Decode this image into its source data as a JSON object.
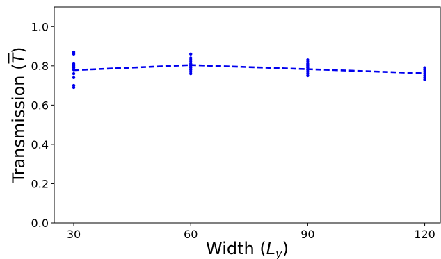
{
  "chart_data": {
    "type": "scatter",
    "title": "",
    "xlabel": {
      "text": "Width (",
      "var": "L",
      "sub": "y",
      "close": ")"
    },
    "ylabel": {
      "text": "Transmission (",
      "var": "T",
      "close": ")"
    },
    "xlim": [
      25,
      124
    ],
    "ylim": [
      0.0,
      1.1
    ],
    "xticks": [
      30,
      60,
      90,
      120
    ],
    "yticks": [
      0.0,
      0.2,
      0.4,
      0.6,
      0.8,
      1.0
    ],
    "ytick_labels": [
      "0.0",
      "0.2",
      "0.4",
      "0.6",
      "0.8",
      "1.0"
    ],
    "grid": false,
    "color": "#0000ee",
    "mean_line": {
      "style": "dashed",
      "x": [
        30,
        60,
        90,
        120
      ],
      "y": [
        0.778,
        0.804,
        0.783,
        0.762
      ]
    },
    "points": [
      {
        "x": 30,
        "values": [
          0.69,
          0.7,
          0.74,
          0.76,
          0.78,
          0.79,
          0.8,
          0.81,
          0.86,
          0.87
        ]
      },
      {
        "x": 60,
        "values": [
          0.76,
          0.77,
          0.78,
          0.79,
          0.8,
          0.81,
          0.82,
          0.83,
          0.84,
          0.86
        ]
      },
      {
        "x": 90,
        "values": [
          0.75,
          0.76,
          0.77,
          0.78,
          0.79,
          0.8,
          0.81,
          0.82,
          0.83
        ]
      },
      {
        "x": 120,
        "values": [
          0.73,
          0.74,
          0.75,
          0.76,
          0.77,
          0.78,
          0.79
        ]
      }
    ]
  }
}
